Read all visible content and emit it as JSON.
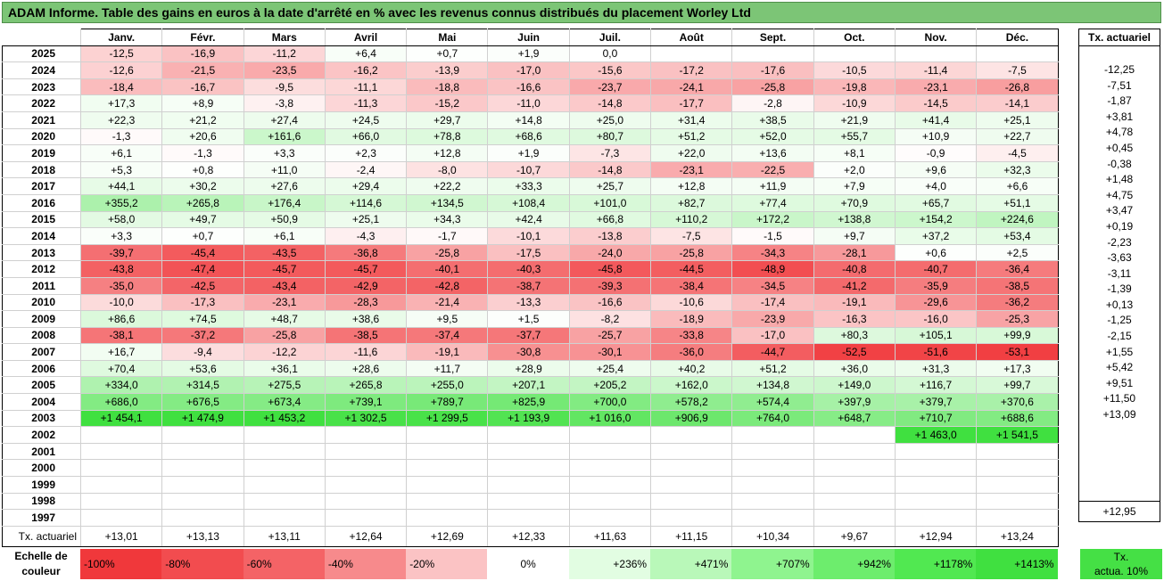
{
  "title": "ADAM Informe. Table des gains en euros à la date d'arrêté en % avec les revenus connus distribués du placement Worley Ltd",
  "months": [
    "Janv.",
    "Févr.",
    "Mars",
    "Avril",
    "Mai",
    "Juin",
    "Juil.",
    "Août",
    "Sept.",
    "Oct.",
    "Nov.",
    "Déc."
  ],
  "actuarial_header": "Tx. actuariel",
  "rows": [
    {
      "year": "2025",
      "values": [
        -12.5,
        -16.9,
        -11.2,
        6.4,
        0.7,
        1.9,
        0.0,
        null,
        null,
        null,
        null,
        null
      ],
      "tx": ""
    },
    {
      "year": "2024",
      "values": [
        -12.6,
        -21.5,
        -23.5,
        -16.2,
        -13.9,
        -17.0,
        -15.6,
        -17.2,
        -17.6,
        -10.5,
        -11.4,
        -7.5
      ],
      "tx": "-12,25"
    },
    {
      "year": "2023",
      "values": [
        -18.4,
        -16.7,
        -9.5,
        -11.1,
        -18.8,
        -16.6,
        -23.7,
        -24.1,
        -25.8,
        -19.8,
        -23.1,
        -26.8
      ],
      "tx": "-7,51"
    },
    {
      "year": "2022",
      "values": [
        17.3,
        8.9,
        -3.8,
        -11.3,
        -15.2,
        -11.0,
        -14.8,
        -17.7,
        -2.8,
        -10.9,
        -14.5,
        -14.1
      ],
      "tx": "-1,87"
    },
    {
      "year": "2021",
      "values": [
        22.3,
        21.2,
        27.4,
        24.5,
        29.7,
        14.8,
        25.0,
        31.4,
        38.5,
        21.9,
        41.4,
        25.1
      ],
      "tx": "+3,81"
    },
    {
      "year": "2020",
      "values": [
        -1.3,
        20.6,
        161.6,
        66.0,
        78.8,
        68.6,
        80.7,
        51.2,
        52.0,
        55.7,
        10.9,
        22.7
      ],
      "tx": "+4,78"
    },
    {
      "year": "2019",
      "values": [
        6.1,
        -1.3,
        3.3,
        2.3,
        12.8,
        1.9,
        -7.3,
        22.0,
        13.6,
        8.1,
        -0.9,
        -4.5
      ],
      "tx": "+0,45"
    },
    {
      "year": "2018",
      "values": [
        5.3,
        0.8,
        11.0,
        -2.4,
        -8.0,
        -10.7,
        -14.8,
        -23.1,
        -22.5,
        2.0,
        9.6,
        32.3
      ],
      "tx": "-0,38"
    },
    {
      "year": "2017",
      "values": [
        44.1,
        30.2,
        27.6,
        29.4,
        22.2,
        33.3,
        25.7,
        12.8,
        11.9,
        7.9,
        4.0,
        6.6
      ],
      "tx": "+1,48"
    },
    {
      "year": "2016",
      "values": [
        355.2,
        265.8,
        176.4,
        114.6,
        134.5,
        108.4,
        101.0,
        82.7,
        77.4,
        70.9,
        65.7,
        51.1
      ],
      "tx": "+4,75"
    },
    {
      "year": "2015",
      "values": [
        58.0,
        49.7,
        50.9,
        25.1,
        34.3,
        42.4,
        66.8,
        110.2,
        172.2,
        138.8,
        154.2,
        224.6
      ],
      "tx": "+3,47"
    },
    {
      "year": "2014",
      "values": [
        3.3,
        0.7,
        6.1,
        -4.3,
        -1.7,
        -10.1,
        -13.8,
        -7.5,
        -1.5,
        9.7,
        37.2,
        53.4
      ],
      "tx": "+0,19"
    },
    {
      "year": "2013",
      "values": [
        -39.7,
        -45.4,
        -43.5,
        -36.8,
        -25.8,
        -17.5,
        -24.0,
        -25.8,
        -34.3,
        -28.1,
        0.6,
        2.5
      ],
      "tx": "-2,23"
    },
    {
      "year": "2012",
      "values": [
        -43.8,
        -47.4,
        -45.7,
        -45.7,
        -40.1,
        -40.3,
        -45.8,
        -44.5,
        -48.9,
        -40.8,
        -40.7,
        -36.4
      ],
      "tx": "-3,63"
    },
    {
      "year": "2011",
      "values": [
        -35.0,
        -42.5,
        -43.4,
        -42.9,
        -42.8,
        -38.7,
        -39.3,
        -38.4,
        -34.5,
        -41.2,
        -35.9,
        -38.5
      ],
      "tx": "-3,11"
    },
    {
      "year": "2010",
      "values": [
        -10.0,
        -17.3,
        -23.1,
        -28.3,
        -21.4,
        -13.3,
        -16.6,
        -10.6,
        -17.4,
        -19.1,
        -29.6,
        -36.2
      ],
      "tx": "-1,39"
    },
    {
      "year": "2009",
      "values": [
        86.6,
        74.5,
        48.7,
        38.6,
        9.5,
        1.5,
        -8.2,
        -18.9,
        -23.9,
        -16.3,
        -16.0,
        -25.3
      ],
      "tx": "+0,13"
    },
    {
      "year": "2008",
      "values": [
        -38.1,
        -37.2,
        -25.8,
        -38.5,
        -37.4,
        -37.7,
        -25.7,
        -33.8,
        -17.0,
        80.3,
        105.1,
        99.9
      ],
      "tx": "-1,25"
    },
    {
      "year": "2007",
      "values": [
        16.7,
        -9.4,
        -12.2,
        -11.6,
        -19.1,
        -30.8,
        -30.1,
        -36.0,
        -44.7,
        -52.5,
        -51.6,
        -53.1
      ],
      "tx": "-2,15"
    },
    {
      "year": "2006",
      "values": [
        70.4,
        53.6,
        36.1,
        28.6,
        11.7,
        28.9,
        25.4,
        40.2,
        51.2,
        36.0,
        31.3,
        17.3
      ],
      "tx": "+1,55"
    },
    {
      "year": "2005",
      "values": [
        334.0,
        314.5,
        275.5,
        265.8,
        255.0,
        207.1,
        205.2,
        162.0,
        134.8,
        149.0,
        116.7,
        99.7
      ],
      "tx": "+5,42"
    },
    {
      "year": "2004",
      "values": [
        686.0,
        676.5,
        673.4,
        739.1,
        789.7,
        825.9,
        700.0,
        578.2,
        574.4,
        397.9,
        379.7,
        370.6
      ],
      "tx": "+9,51"
    },
    {
      "year": "2003",
      "values": [
        1454.1,
        1474.9,
        1453.2,
        1302.5,
        1299.5,
        1193.9,
        1016.0,
        906.9,
        764.0,
        648.7,
        710.7,
        688.6
      ],
      "tx": "+11,50"
    },
    {
      "year": "2002",
      "values": [
        null,
        null,
        null,
        null,
        null,
        null,
        null,
        null,
        null,
        null,
        1463.0,
        1541.5
      ],
      "tx": "+13,09"
    },
    {
      "year": "2001",
      "values": [
        null,
        null,
        null,
        null,
        null,
        null,
        null,
        null,
        null,
        null,
        null,
        null
      ],
      "tx": ""
    },
    {
      "year": "2000",
      "values": [
        null,
        null,
        null,
        null,
        null,
        null,
        null,
        null,
        null,
        null,
        null,
        null
      ],
      "tx": ""
    },
    {
      "year": "1999",
      "values": [
        null,
        null,
        null,
        null,
        null,
        null,
        null,
        null,
        null,
        null,
        null,
        null
      ],
      "tx": ""
    },
    {
      "year": "1998",
      "values": [
        null,
        null,
        null,
        null,
        null,
        null,
        null,
        null,
        null,
        null,
        null,
        null
      ],
      "tx": ""
    },
    {
      "year": "1997",
      "values": [
        null,
        null,
        null,
        null,
        null,
        null,
        null,
        null,
        null,
        null,
        null,
        null
      ],
      "tx": ""
    }
  ],
  "footer": {
    "label": "Tx. actuariel",
    "values": [
      "+13,01",
      "+13,13",
      "+13,11",
      "+12,64",
      "+12,69",
      "+12,33",
      "+11,63",
      "+11,15",
      "+10,34",
      "+9,67",
      "+12,94",
      "+13,24"
    ],
    "overall": "+12,95"
  },
  "legend": {
    "label_line1": "Echelle de",
    "label_line2": "couleur",
    "items": [
      {
        "text": "-100%",
        "color": "#f0383b",
        "align": "left"
      },
      {
        "text": "-80%",
        "color": "#f24c4f",
        "align": "left"
      },
      {
        "text": "-60%",
        "color": "#f46366",
        "align": "left"
      },
      {
        "text": "-40%",
        "color": "#f78a8c",
        "align": "left"
      },
      {
        "text": "-20%",
        "color": "#fbc3c4",
        "align": "left"
      },
      {
        "text": "0%",
        "color": "#ffffff",
        "align": "center"
      },
      {
        "text": "+236%",
        "color": "#e2fde2",
        "align": "right"
      },
      {
        "text": "+471%",
        "color": "#b9f8b9",
        "align": "right"
      },
      {
        "text": "+707%",
        "color": "#8ff48f",
        "align": "right"
      },
      {
        "text": "+942%",
        "color": "#6ded6d",
        "align": "right"
      },
      {
        "text": "+1178%",
        "color": "#51e851",
        "align": "right"
      },
      {
        "text": "+1413%",
        "color": "#40e040",
        "align": "right"
      }
    ],
    "tx_line1": "Tx.",
    "tx_line2": "actua. 10%"
  },
  "colors": {
    "title_bg": "#7cc576",
    "neg_max": "#f0383b",
    "pos_max": "#40e040"
  }
}
